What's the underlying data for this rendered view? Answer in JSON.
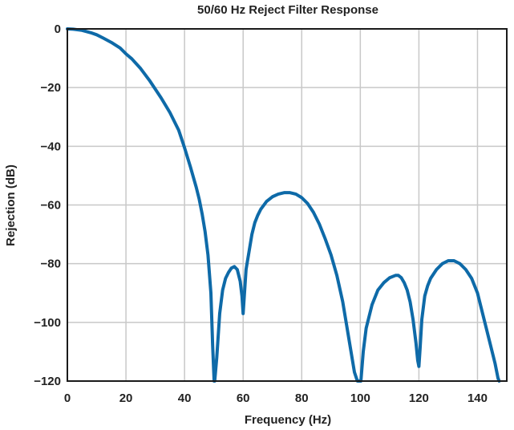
{
  "chart_data": {
    "type": "line",
    "title": "50/60 Hz Reject Filter Response",
    "xlabel": "Frequency (Hz)",
    "ylabel": "Rejection (dB)",
    "xlim": [
      0,
      150
    ],
    "ylim": [
      -120,
      0
    ],
    "xticks": [
      0,
      20,
      40,
      60,
      80,
      100,
      120,
      140
    ],
    "yticks": [
      0,
      -20,
      -40,
      -60,
      -80,
      -100,
      -120
    ],
    "xtick_labels": [
      "0",
      "20",
      "40",
      "60",
      "80",
      "100",
      "120",
      "140"
    ],
    "ytick_labels": [
      "0",
      "−20",
      "−40",
      "−60",
      "−80",
      "−100",
      "−120"
    ],
    "grid": true,
    "series": [
      {
        "name": "Rejection",
        "color": "#0e6aa8",
        "x": [
          0,
          2,
          5,
          8,
          10,
          12,
          15,
          18,
          20,
          22,
          25,
          28,
          30,
          32,
          35,
          38,
          40,
          42,
          44,
          45,
          46,
          47,
          48,
          49,
          49.6,
          50.1,
          50.3,
          51,
          52,
          53,
          54,
          55,
          56,
          57,
          58,
          59,
          59.6,
          60,
          60.4,
          61,
          62,
          63,
          64,
          65,
          66,
          68,
          70,
          72,
          74,
          76,
          78,
          80,
          82,
          84,
          86,
          88,
          90,
          92,
          94,
          95,
          96,
          97,
          98,
          99,
          100.2,
          101,
          102,
          104,
          106,
          108,
          110,
          112,
          113,
          114,
          115,
          116,
          117,
          118,
          119,
          119.6,
          120,
          120.4,
          121,
          122,
          123,
          124,
          126,
          128,
          130,
          132,
          134,
          136,
          138,
          140,
          141,
          142,
          143,
          144,
          145,
          146,
          147,
          147.4
        ],
        "y": [
          0,
          -0.1,
          -0.5,
          -1.3,
          -2,
          -3,
          -4.6,
          -6.5,
          -8.5,
          -10.2,
          -13.5,
          -17.5,
          -20.5,
          -23.5,
          -28.5,
          -34.5,
          -40.5,
          -47,
          -54,
          -58,
          -63,
          -69,
          -77,
          -90,
          -108,
          -120,
          -120,
          -112,
          -97,
          -89,
          -85,
          -83,
          -81.5,
          -81,
          -82,
          -86,
          -91,
          -97,
          -91,
          -82,
          -76,
          -70,
          -66,
          -63.5,
          -61.5,
          -58.8,
          -57.2,
          -56.3,
          -55.8,
          -55.8,
          -56.3,
          -57.5,
          -59.5,
          -62.5,
          -66.5,
          -71.5,
          -77,
          -84,
          -93,
          -99,
          -105,
          -111,
          -117,
          -120,
          -120,
          -110,
          -102,
          -94,
          -89,
          -86.5,
          -84.8,
          -84,
          -84,
          -84.8,
          -86.5,
          -89,
          -93,
          -99,
          -107,
          -113,
          -115,
          -109,
          -99,
          -91,
          -87.5,
          -85,
          -82,
          -80,
          -79,
          -79,
          -80,
          -82,
          -85,
          -90,
          -94,
          -98,
          -102,
          -106,
          -110,
          -114,
          -119,
          -120
        ]
      }
    ]
  }
}
